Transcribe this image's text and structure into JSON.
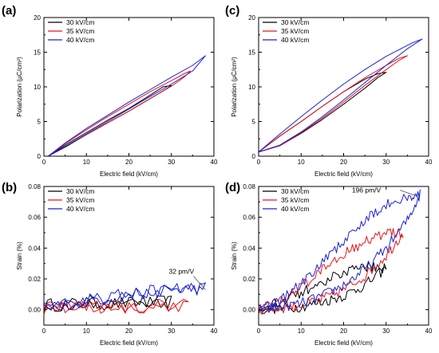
{
  "colors": {
    "30": "#000000",
    "35": "#e8141c",
    "40": "#1a23d6"
  },
  "chart_data": [
    {
      "panel": "(a)",
      "type": "line",
      "xlabel": "Electric field (kV/cm)",
      "ylabel": "Polarization (μC/cm²)",
      "xlim": [
        0,
        40
      ],
      "ylim": [
        0,
        20
      ],
      "xticks": [
        0,
        10,
        20,
        30,
        40
      ],
      "yticks": [
        0,
        5,
        10,
        15,
        20
      ],
      "legend_position": "top-left",
      "series": [
        {
          "name": "30 kV/cm",
          "color": "#000000",
          "x": [
            1,
            5,
            10,
            15,
            20,
            25,
            28.5,
            30,
            28,
            25,
            20,
            15,
            10,
            5,
            1
          ],
          "y": [
            0,
            1.3,
            3.1,
            4.8,
            6.5,
            8.3,
            9.6,
            10.2,
            10.0,
            8.8,
            6.9,
            5.2,
            3.4,
            1.6,
            0
          ]
        },
        {
          "name": "35 kV/cm",
          "color": "#e8141c",
          "x": [
            1,
            5,
            10,
            15,
            20,
            25,
            30,
            33,
            34.5,
            33,
            30,
            25,
            20,
            15,
            10,
            5,
            1
          ],
          "y": [
            0,
            1.4,
            3.1,
            4.8,
            6.5,
            8.3,
            10.1,
            11.4,
            12.3,
            11.9,
            10.9,
            9.3,
            7.5,
            5.7,
            3.8,
            1.8,
            0
          ]
        },
        {
          "name": "40 kV/cm",
          "color": "#1a23d6",
          "x": [
            1,
            5,
            10,
            15,
            20,
            25,
            30,
            35,
            38,
            35,
            30,
            25,
            20,
            15,
            10,
            5,
            1
          ],
          "y": [
            0,
            1.4,
            3.2,
            5.0,
            6.8,
            8.6,
            10.4,
            12.3,
            14.5,
            13.1,
            11.4,
            9.6,
            7.8,
            5.9,
            4.0,
            1.9,
            0
          ]
        }
      ]
    },
    {
      "panel": "(c)",
      "type": "line",
      "xlabel": "Electric field (kV/cm)",
      "ylabel": "Polarization (μC/cm²)",
      "xlim": [
        0,
        40
      ],
      "ylim": [
        0,
        20
      ],
      "xticks": [
        0,
        10,
        20,
        30,
        40
      ],
      "yticks": [
        0,
        5,
        10,
        15,
        20
      ],
      "legend_position": "top-left",
      "series": [
        {
          "name": "30 kV/cm",
          "color": "#000000",
          "x": [
            0,
            5,
            10,
            15,
            20,
            25,
            28,
            30,
            28,
            25,
            20,
            15,
            10,
            5,
            0
          ],
          "y": [
            0.6,
            1.5,
            3.3,
            5.3,
            7.5,
            9.8,
            11.3,
            12.1,
            11.9,
            11.1,
            9.3,
            7.2,
            5.0,
            2.9,
            0.6
          ]
        },
        {
          "name": "35 kV/cm",
          "color": "#e8141c",
          "x": [
            0,
            5,
            10,
            15,
            20,
            25,
            30,
            33,
            35,
            33,
            30,
            25,
            20,
            15,
            10,
            5,
            0
          ],
          "y": [
            0.6,
            1.5,
            3.4,
            5.5,
            7.8,
            10.2,
            12.5,
            13.8,
            14.5,
            14.1,
            13.1,
            11.3,
            9.3,
            7.2,
            5.0,
            2.9,
            0.6
          ]
        },
        {
          "name": "40 kV/cm",
          "color": "#1a23d6",
          "x": [
            0,
            5,
            10,
            15,
            20,
            25,
            30,
            35,
            38.5,
            36,
            30,
            25,
            20,
            15,
            10,
            5,
            0
          ],
          "y": [
            0.6,
            1.6,
            3.5,
            5.7,
            8.1,
            10.6,
            13.1,
            15.5,
            16.9,
            16.3,
            14.4,
            12.5,
            10.4,
            8.1,
            5.7,
            3.2,
            0.6
          ]
        }
      ]
    },
    {
      "panel": "(b)",
      "type": "line",
      "xlabel": "Electric field (kV/cm)",
      "ylabel": "Strain (%)",
      "xlim": [
        0,
        40
      ],
      "ylim": [
        -0.01,
        0.08
      ],
      "xticks": [
        0,
        10,
        20,
        30,
        40
      ],
      "yticks": [
        0.0,
        0.02,
        0.04,
        0.06,
        0.08
      ],
      "ytick_labels": [
        "0.00",
        "0.02",
        "0.04",
        "0.06",
        "0.08"
      ],
      "legend_position": "top-left",
      "annotation": {
        "text": "32 pm/V",
        "x": 38,
        "y": 0.013
      },
      "series": [
        {
          "name": "30 kV/cm",
          "color": "#000000",
          "noisy": true,
          "x": [
            0,
            10,
            20,
            30,
            20,
            10,
            0
          ],
          "y": [
            0.003,
            0.004,
            0.004,
            0.005,
            0.005,
            0.004,
            0.003
          ]
        },
        {
          "name": "35 kV/cm",
          "color": "#e8141c",
          "noisy": true,
          "x": [
            0,
            10,
            20,
            34,
            20,
            10,
            0
          ],
          "y": [
            0.001,
            0.001,
            0.002,
            0.003,
            0.002,
            0.002,
            0.001
          ]
        },
        {
          "name": "40 kV/cm",
          "color": "#1a23d6",
          "noisy": true,
          "x": [
            0,
            10,
            20,
            30,
            38,
            30,
            20,
            10,
            0
          ],
          "y": [
            0.002,
            0.006,
            0.01,
            0.013,
            0.014,
            0.013,
            0.01,
            0.006,
            0.002
          ]
        }
      ]
    },
    {
      "panel": "(d)",
      "type": "line",
      "xlabel": "Electric field (kV/cm)",
      "ylabel": "Strain (%)",
      "xlim": [
        0,
        40
      ],
      "ylim": [
        -0.01,
        0.08
      ],
      "xticks": [
        0,
        10,
        20,
        30,
        40
      ],
      "yticks": [
        0.0,
        0.02,
        0.04,
        0.06,
        0.08
      ],
      "ytick_labels": [
        "0.00",
        "0.02",
        "0.04",
        "0.06",
        "0.08"
      ],
      "legend_position": "top-left",
      "annotation": {
        "text": "196 pm/V",
        "x": 37,
        "y": 0.074
      },
      "series": [
        {
          "name": "30 kV/cm",
          "color": "#000000",
          "noisy": true,
          "x": [
            0,
            5,
            10,
            15,
            20,
            25,
            30,
            25,
            20,
            15,
            10,
            5,
            0
          ],
          "y": [
            0.0,
            0.001,
            0.002,
            0.005,
            0.009,
            0.016,
            0.027,
            0.028,
            0.024,
            0.018,
            0.011,
            0.005,
            0.0
          ]
        },
        {
          "name": "35 kV/cm",
          "color": "#e8141c",
          "noisy": true,
          "x": [
            0,
            5,
            10,
            15,
            20,
            25,
            30,
            34,
            30,
            25,
            20,
            15,
            10,
            5,
            0
          ],
          "y": [
            0.0,
            0.001,
            0.003,
            0.007,
            0.013,
            0.022,
            0.035,
            0.05,
            0.049,
            0.044,
            0.036,
            0.026,
            0.015,
            0.005,
            0.0
          ]
        },
        {
          "name": "40 kV/cm",
          "color": "#1a23d6",
          "noisy": true,
          "x": [
            0,
            5,
            10,
            15,
            20,
            25,
            30,
            35,
            38,
            35,
            30,
            25,
            20,
            15,
            10,
            5,
            0
          ],
          "y": [
            0.0,
            0.002,
            0.004,
            0.009,
            0.016,
            0.026,
            0.04,
            0.058,
            0.075,
            0.074,
            0.068,
            0.058,
            0.045,
            0.031,
            0.017,
            0.006,
            0.0
          ]
        }
      ]
    }
  ]
}
